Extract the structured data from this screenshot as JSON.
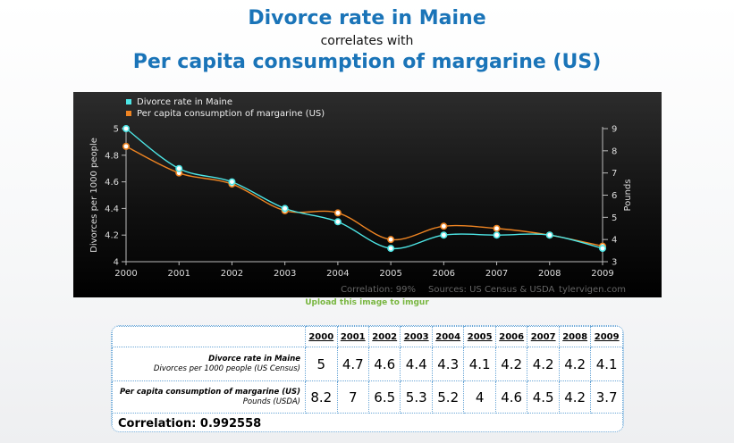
{
  "header": {
    "title_top": "Divorce rate in Maine",
    "connector": "correlates with",
    "title_bottom": "Per capita consumption of margarine (US)"
  },
  "upload_link": "Upload this image to imgur",
  "chart_data": {
    "type": "line",
    "x": [
      "2000",
      "2001",
      "2002",
      "2003",
      "2004",
      "2005",
      "2006",
      "2007",
      "2008",
      "2009"
    ],
    "series": [
      {
        "name": "Divorce rate in Maine",
        "axis": "left",
        "color": "#4de6e6",
        "values": [
          5,
          4.7,
          4.6,
          4.4,
          4.3,
          4.1,
          4.2,
          4.2,
          4.2,
          4.1
        ]
      },
      {
        "name": "Per capita consumption of margarine (US)",
        "axis": "right",
        "color": "#ee8422",
        "values": [
          8.2,
          7,
          6.5,
          5.3,
          5.2,
          4,
          4.6,
          4.5,
          4.2,
          3.7
        ]
      }
    ],
    "ylabel_left": "Divorces per 1000 people",
    "ylabel_right": "Pounds",
    "yticks_left": [
      "4",
      "4.2",
      "4.4",
      "4.6",
      "4.8",
      "5"
    ],
    "yticks_right": [
      "3",
      "4",
      "5",
      "6",
      "7",
      "8",
      "9"
    ],
    "ylim_left": [
      4,
      5
    ],
    "ylim_right": [
      3,
      9
    ],
    "legend_position": "top-left",
    "footer": {
      "correlation": "Correlation: 99%",
      "sources": "Sources: US Census & USDA",
      "site": "tylervigen.com"
    }
  },
  "table": {
    "years": [
      "2000",
      "2001",
      "2002",
      "2003",
      "2004",
      "2005",
      "2006",
      "2007",
      "2008",
      "2009"
    ],
    "rows": [
      {
        "title": "Divorce rate in Maine",
        "subtitle": "Divorces per 1000 people (US Census)",
        "values": [
          "5",
          "4.7",
          "4.6",
          "4.4",
          "4.3",
          "4.1",
          "4.2",
          "4.2",
          "4.2",
          "4.1"
        ]
      },
      {
        "title": "Per capita consumption of margarine (US)",
        "subtitle": "Pounds (USDA)",
        "values": [
          "8.2",
          "7",
          "6.5",
          "5.3",
          "5.2",
          "4",
          "4.6",
          "4.5",
          "4.2",
          "3.7"
        ]
      }
    ],
    "correlation": "Correlation: 0.992558"
  }
}
